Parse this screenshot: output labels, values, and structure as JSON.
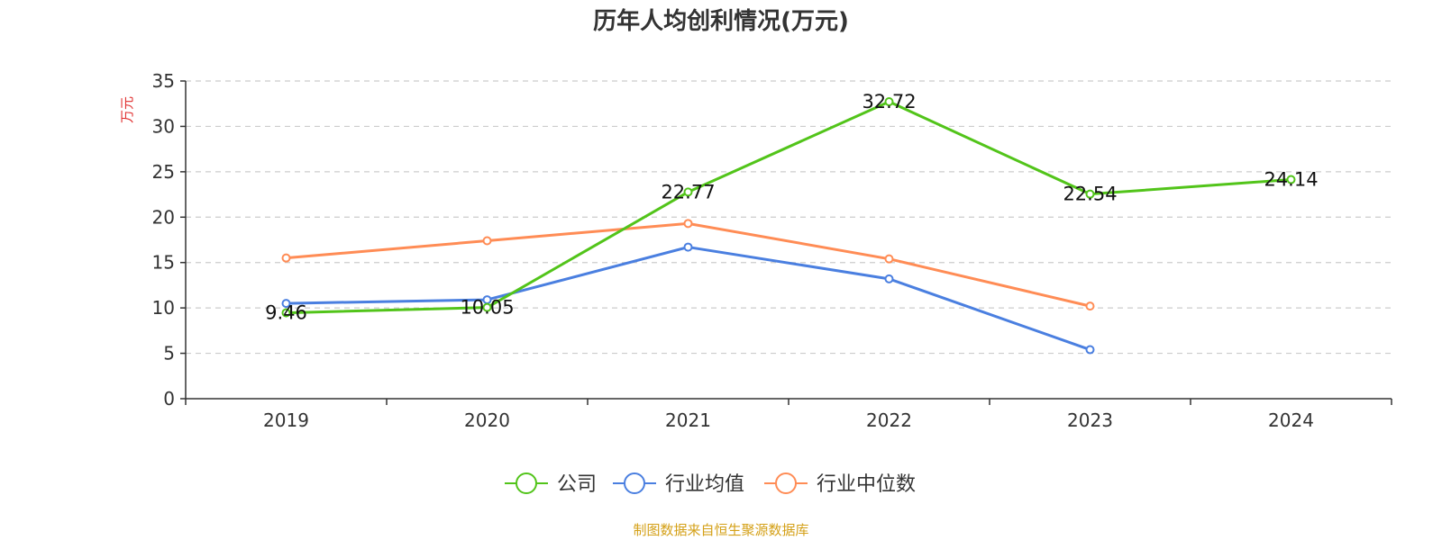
{
  "chart_data": {
    "type": "line",
    "title": "历年人均创利情况(万元)",
    "ylabel": "万元",
    "xlabel": "",
    "categories": [
      "2019",
      "2020",
      "2021",
      "2022",
      "2023",
      "2024"
    ],
    "ylim": [
      0,
      35
    ],
    "yticks": [
      0,
      5,
      10,
      15,
      20,
      25,
      30,
      35
    ],
    "grid": "horizontal dashed",
    "legend_position": "bottom",
    "series": [
      {
        "name": "公司",
        "color": "#52c41a",
        "values": [
          9.46,
          10.05,
          22.77,
          32.72,
          22.54,
          24.14
        ],
        "labels": [
          "9.46",
          "10.05",
          "22.77",
          "32.72",
          "22.54",
          "24.14"
        ]
      },
      {
        "name": "行业均值",
        "color": "#4a7fe0",
        "values": [
          10.5,
          10.9,
          16.7,
          13.2,
          5.4,
          null
        ]
      },
      {
        "name": "行业中位数",
        "color": "#ff8c55",
        "values": [
          15.5,
          17.4,
          19.3,
          15.4,
          10.2,
          null
        ]
      }
    ]
  },
  "source": {
    "text": "制图数据来自恒生聚源数据库",
    "color": "#d4a017"
  },
  "colors": {
    "axis": "#333333",
    "grid": "#cccccc",
    "ylabel": "#e03030"
  }
}
